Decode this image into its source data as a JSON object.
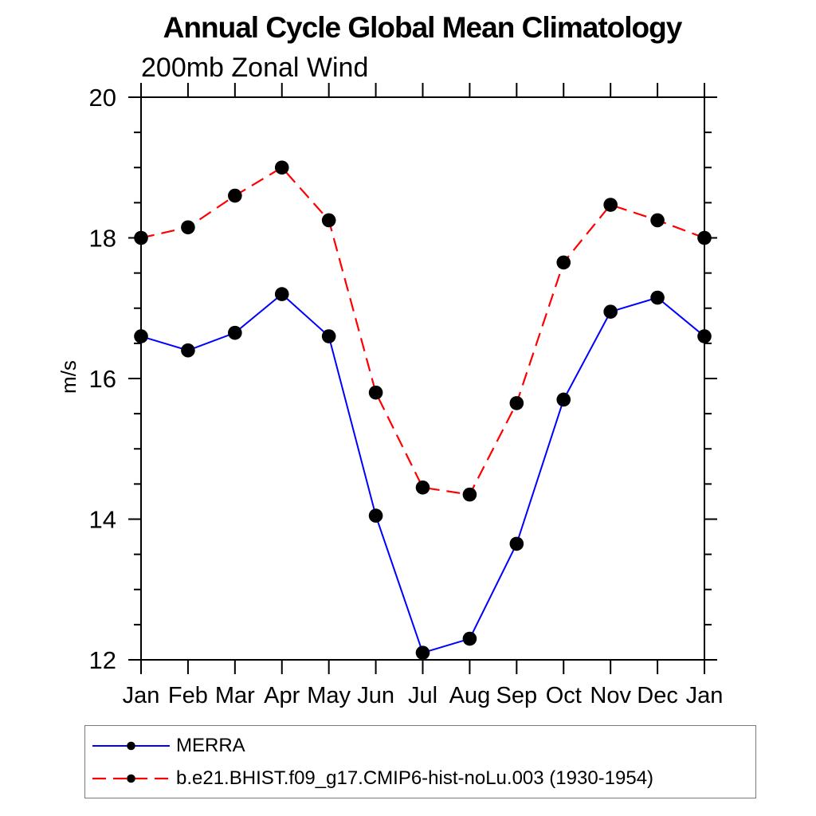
{
  "chart_data": {
    "type": "line",
    "title": "Annual Cycle Global Mean Climatology",
    "subtitle": "200mb Zonal Wind",
    "ylabel": "m/s",
    "xlabel": "",
    "categories": [
      "Jan",
      "Feb",
      "Mar",
      "Apr",
      "May",
      "Jun",
      "Jul",
      "Aug",
      "Sep",
      "Oct",
      "Nov",
      "Dec",
      "Jan"
    ],
    "ylim": [
      12,
      20
    ],
    "y_major_ticks": [
      12,
      14,
      16,
      18,
      20
    ],
    "y_tick_labels": [
      "12",
      "14",
      "16",
      "18",
      "20"
    ],
    "y_minor_step": 0.5,
    "grid": false,
    "legend_position": "bottom-left-box",
    "marker": "filled-circle",
    "marker_color": "#000000",
    "axis_color": "#000000",
    "series": [
      {
        "name": "MERRA",
        "color": "#0000ff",
        "line_style": "solid",
        "values": [
          16.6,
          16.4,
          16.65,
          17.2,
          16.6,
          14.05,
          12.1,
          12.3,
          13.65,
          15.7,
          16.95,
          17.15,
          16.6
        ]
      },
      {
        "name": "b.e21.BHIST.f09_g17.CMIP6-hist-noLu.003 (1930-1954)",
        "color": "#ff0000",
        "line_style": "dashed",
        "values": [
          18.0,
          18.15,
          18.6,
          19.0,
          18.25,
          15.8,
          14.45,
          14.35,
          15.65,
          17.65,
          18.47,
          18.25,
          18.0
        ]
      }
    ]
  }
}
